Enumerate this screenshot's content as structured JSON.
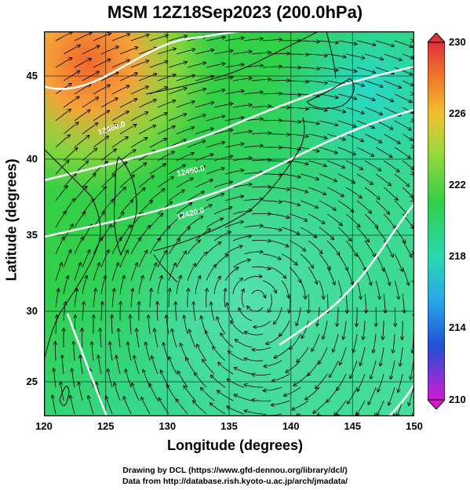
{
  "title": "MSM 12Z18Sep2023 (200.0hPa)",
  "x_axis": {
    "label": "Longitude (degrees)",
    "ticks": [
      "120",
      "125",
      "130",
      "135",
      "140",
      "145",
      "150"
    ]
  },
  "y_axis": {
    "label": "Latitude  (degrees)",
    "ticks": [
      "45",
      "40",
      "35",
      "30",
      "25"
    ]
  },
  "colorbar": {
    "ticks": [
      "230",
      "226",
      "222",
      "218",
      "214",
      "210"
    ],
    "min": 210,
    "max": 230
  },
  "contour_labels": [
    "12480.0",
    "12420.0",
    "12450.0"
  ],
  "credits": {
    "line1": "Drawing by DCL (https://www.gfd-dennou.org/library/dcl/)",
    "line2": "Data from http://database.rish.kyoto-u.ac.jp/arch/jmadata/"
  },
  "colors": {
    "warm": "#f06a1a",
    "mid": "#5fd24a",
    "cool": "#35e0b0",
    "min": "#d21ad2"
  }
}
